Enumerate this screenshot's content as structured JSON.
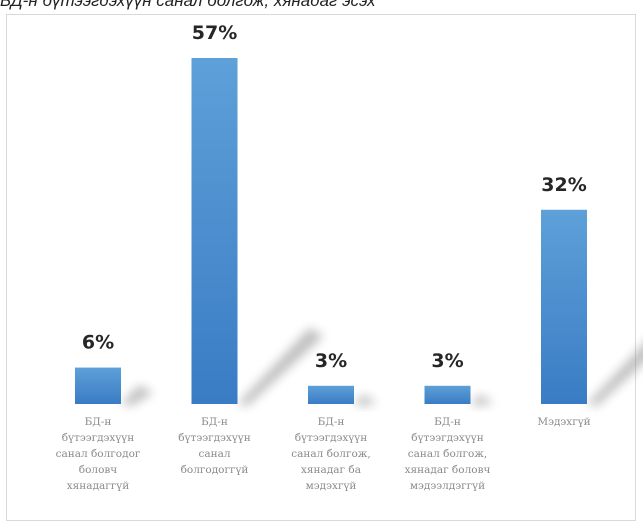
{
  "header": {
    "title_fragment": "БД-н бүтээгдэхүүн санал болгож, хянадаг эсэх"
  },
  "colors": {
    "bar_top": "#5ea0d8",
    "bar_bottom": "#3a7cc4",
    "value_label": "#262626",
    "category_label": "#8a8a8a"
  },
  "chart_data": {
    "type": "bar",
    "title": "",
    "xlabel": "",
    "ylabel": "",
    "grid": false,
    "legend": "none",
    "ylim": [
      0,
      60
    ],
    "categories": [
      [
        "БД-н",
        "бүтээгдэхүүн",
        "санал болгодог",
        "боловч",
        "хянадаггүй"
      ],
      [
        "БД-н",
        "бүтээгдэхүүн",
        "санал",
        "болгодоггүй"
      ],
      [
        "БД-н",
        "бүтээгдэхүүн",
        "санал болгож,",
        "хянадаг ба",
        "мэдэхгүй"
      ],
      [
        "БД-н",
        "бүтээгдэхүүн",
        "санал болгож,",
        "хянадаг боловч",
        "мэдээлдэггүй"
      ],
      [
        "Мэдэхгүй"
      ]
    ],
    "values": [
      6,
      57,
      3,
      3,
      32
    ],
    "value_labels": [
      "6%",
      "57%",
      "3%",
      "3%",
      "32%"
    ]
  }
}
